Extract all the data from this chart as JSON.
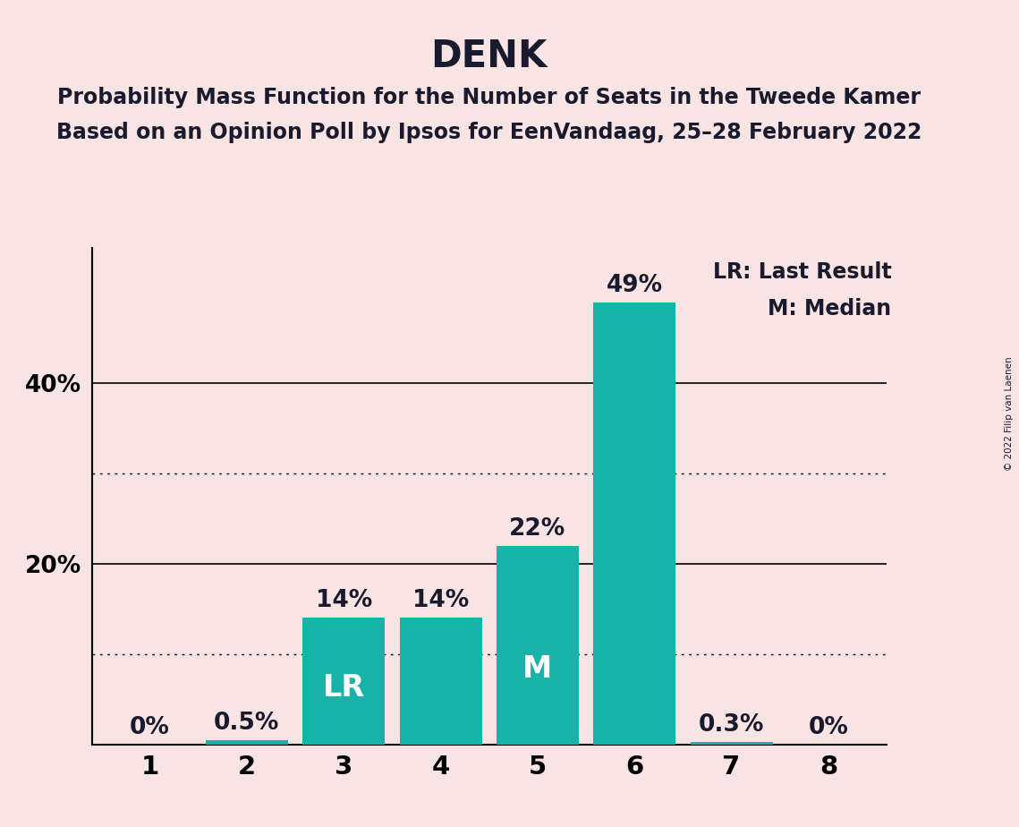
{
  "title": "DENK",
  "subtitle1": "Probability Mass Function for the Number of Seats in the Tweede Kamer",
  "subtitle2": "Based on an Opinion Poll by Ipsos for EenVandaag, 25–28 February 2022",
  "copyright": "© 2022 Filip van Laenen",
  "categories": [
    1,
    2,
    3,
    4,
    5,
    6,
    7,
    8
  ],
  "values": [
    0.0,
    0.5,
    14.0,
    14.0,
    22.0,
    49.0,
    0.3,
    0.0
  ],
  "bar_color": "#18b3a8",
  "background_color": "#f9e4e4",
  "label_color_outside": "#1a1a2e",
  "label_color_inside": "#ffffff",
  "bar_labels": [
    "0%",
    "0.5%",
    "14%",
    "14%",
    "22%",
    "49%",
    "0.3%",
    "0%"
  ],
  "lr_bar_idx": 2,
  "median_bar_idx": 4,
  "ylim": [
    0,
    55
  ],
  "solid_grid_lines": [
    20,
    40
  ],
  "dotted_grid_lines": [
    10,
    30
  ],
  "legend_lr": "LR: Last Result",
  "legend_m": "M: Median",
  "title_fontsize": 30,
  "subtitle_fontsize": 17,
  "bar_label_fontsize": 19,
  "ytick_fontsize": 19,
  "xtick_fontsize": 21,
  "legend_fontsize": 17,
  "inside_label_fontsize": 24
}
